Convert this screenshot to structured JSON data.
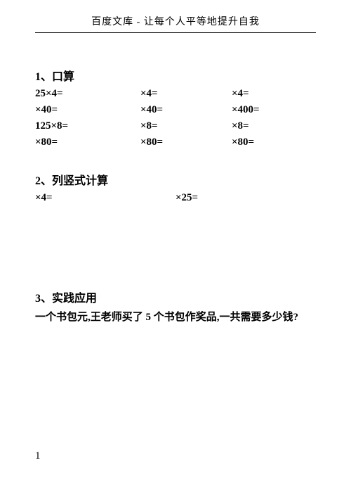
{
  "header": "百度文库 - 让每个人平等地提升自我",
  "section1": {
    "title": "1、口算",
    "rows": [
      [
        "25×4=",
        "×4=",
        "×4="
      ],
      [
        "×40=",
        "×40=",
        "×400="
      ],
      [
        "125×8=",
        "×8=",
        "×8="
      ],
      [
        "×80=",
        "×80=",
        "×80="
      ]
    ]
  },
  "section2": {
    "title": "2、列竖式计算",
    "cols": [
      "×4=",
      "×25="
    ]
  },
  "section3": {
    "title": "3、实践应用",
    "text": "一个书包元,王老师买了 5 个书包作奖品,一共需要多少钱?"
  },
  "pageNumber": "1"
}
